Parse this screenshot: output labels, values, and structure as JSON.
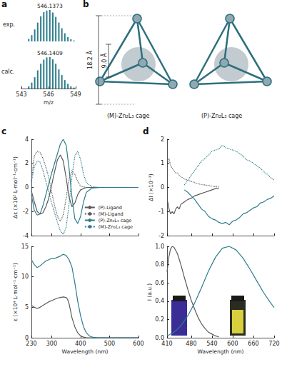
{
  "panel_labels": [
    "a",
    "b",
    "c",
    "d"
  ],
  "diagram": {
    "labels": [
      "(M)-Zn₂L₃ cage",
      "(P)-Zn₂L₃ cage"
    ],
    "dimensions": [
      "18.2 Å",
      "9.0 Å"
    ]
  },
  "chart_data": [
    {
      "type": "bar",
      "title": "exp.",
      "color": "#2e7d8c",
      "x": [
        543.81,
        544.14,
        544.47,
        544.8,
        545.14,
        545.47,
        545.8,
        546.14,
        546.47,
        546.8,
        547.14,
        547.47,
        547.8,
        548.14,
        548.47,
        548.81
      ],
      "values": [
        8,
        20,
        38,
        60,
        80,
        93,
        98,
        100,
        92,
        78,
        60,
        42,
        26,
        14,
        7,
        3
      ],
      "annotations": [
        {
          "x": 546.14,
          "text": "546.1373"
        }
      ],
      "xlim": [
        543,
        549
      ],
      "ylim": [
        0,
        100
      ],
      "tick_labels": false
    },
    {
      "type": "bar",
      "title": "calc.",
      "xlabel": "m/z",
      "color": "#2e7d8c",
      "x": [
        543.81,
        544.14,
        544.47,
        544.8,
        545.14,
        545.47,
        545.8,
        546.14,
        546.47,
        546.8,
        547.14,
        547.47,
        547.8,
        548.14,
        548.47,
        548.81
      ],
      "values": [
        7,
        19,
        36,
        58,
        79,
        92,
        99,
        100,
        93,
        79,
        61,
        43,
        27,
        15,
        7,
        3
      ],
      "annotations": [
        {
          "x": 546.14,
          "text": "546.1409"
        }
      ],
      "xlim": [
        543,
        549
      ],
      "xticks": [
        543,
        546,
        549
      ],
      "ylim": [
        0,
        100
      ],
      "tick_labels": "x"
    },
    {
      "type": "line",
      "ylabel": "Δε (×10² L·mol⁻¹·cm⁻¹)",
      "xlim": [
        230,
        600
      ],
      "xticks": [
        230,
        300,
        400,
        500,
        600
      ],
      "ylim": [
        -4,
        4
      ],
      "yticks": [
        -4,
        -2,
        0,
        2,
        4
      ],
      "tick_labels": "y",
      "grid": false,
      "legend": "lower right",
      "series": [
        {
          "name": "(P)-Ligand",
          "color": "#5a5a5a",
          "line_style": "solid",
          "x": [
            230,
            240,
            250,
            260,
            270,
            280,
            290,
            300,
            310,
            320,
            330,
            340,
            350,
            360,
            370,
            380,
            390,
            400,
            420,
            450,
            500,
            550,
            600
          ],
          "values": [
            -0.3,
            -1.2,
            -2.0,
            -2.2,
            -2.1,
            -1.6,
            -0.9,
            0.2,
            1.3,
            2.3,
            2.7,
            2.2,
            0.8,
            -0.8,
            -1.6,
            -1.3,
            -0.6,
            -0.2,
            0,
            0,
            0,
            0,
            0
          ]
        },
        {
          "name": "(M)-Ligand",
          "color": "#5a5a5a",
          "line_style": "dotted",
          "x": [
            230,
            240,
            250,
            260,
            270,
            280,
            290,
            300,
            310,
            320,
            330,
            340,
            350,
            360,
            370,
            380,
            390,
            400,
            420,
            450,
            500,
            550,
            600
          ],
          "values": [
            0.5,
            2.6,
            3.0,
            2.9,
            2.4,
            1.7,
            0.8,
            -0.4,
            -1.5,
            -2.4,
            -2.8,
            -2.3,
            -0.9,
            0.7,
            1.4,
            1.1,
            0.5,
            0.1,
            0,
            0,
            0,
            0,
            0
          ]
        },
        {
          "name": "(P)-Zn₂L₃ cage",
          "color": "#2e7d8c",
          "line_style": "solid",
          "x": [
            230,
            240,
            250,
            260,
            270,
            280,
            290,
            300,
            310,
            320,
            330,
            340,
            350,
            360,
            370,
            380,
            390,
            400,
            410,
            420,
            440,
            470,
            500,
            550,
            600
          ],
          "values": [
            -0.6,
            -1.9,
            -2.3,
            -2.2,
            -1.5,
            -0.6,
            0.3,
            1.2,
            2.0,
            2.8,
            3.6,
            4.0,
            3.5,
            1.6,
            -0.8,
            -2.6,
            -3.0,
            -2.4,
            -1.2,
            -0.4,
            -0.05,
            0,
            0,
            0,
            0
          ]
        },
        {
          "name": "(M)-Zn₂L₃ cage",
          "color": "#2e7d8c",
          "line_style": "dotted",
          "x": [
            230,
            240,
            250,
            260,
            270,
            280,
            290,
            300,
            310,
            320,
            330,
            340,
            350,
            360,
            370,
            380,
            390,
            400,
            410,
            420,
            440,
            470,
            500,
            550,
            600
          ],
          "values": [
            0.5,
            1.7,
            2.2,
            2.1,
            1.4,
            0.5,
            -0.4,
            -1.3,
            -2.1,
            -2.9,
            -3.6,
            -3.9,
            -3.3,
            -1.4,
            0.9,
            2.6,
            3.0,
            2.3,
            1.1,
            0.4,
            0.05,
            0,
            0,
            0,
            0
          ]
        }
      ]
    },
    {
      "type": "line",
      "xlabel": "Wavelength (nm)",
      "ylabel": "ε (×10⁴ L·mol⁻¹·cm⁻¹)",
      "xlim": [
        230,
        600
      ],
      "xticks": [
        230,
        300,
        400,
        500,
        600
      ],
      "ylim": [
        0,
        15
      ],
      "yticks": [
        0,
        5,
        10,
        15
      ],
      "grid": false,
      "series": [
        {
          "name": "(P)-Ligand",
          "color": "#5a5a5a",
          "line_style": "solid",
          "x": [
            230,
            240,
            250,
            260,
            270,
            280,
            290,
            300,
            310,
            320,
            330,
            340,
            350,
            355,
            360,
            365,
            370,
            380,
            390,
            400,
            410,
            420,
            450,
            500,
            600
          ],
          "values": [
            5.3,
            5.0,
            4.8,
            5.0,
            5.3,
            5.6,
            5.9,
            6.1,
            6.3,
            6.5,
            6.6,
            6.7,
            6.6,
            6.3,
            5.6,
            4.5,
            3.3,
            1.8,
            0.8,
            0.3,
            0.1,
            0,
            0,
            0,
            0
          ]
        },
        {
          "name": "(P)-Zn₂L₃ cage",
          "color": "#2e7d8c",
          "line_style": "solid",
          "x": [
            230,
            240,
            250,
            260,
            270,
            280,
            290,
            300,
            310,
            320,
            330,
            340,
            350,
            360,
            370,
            380,
            390,
            400,
            410,
            420,
            430,
            440,
            460,
            500,
            600
          ],
          "values": [
            12.8,
            12.0,
            11.5,
            11.8,
            12.2,
            12.6,
            12.8,
            13.0,
            13.0,
            13.2,
            13.4,
            13.7,
            13.5,
            12.8,
            11.6,
            9.0,
            6.0,
            3.6,
            1.8,
            0.8,
            0.3,
            0.1,
            0,
            0,
            0
          ]
        }
      ]
    },
    {
      "type": "line",
      "ylabel": "ΔI (×10⁻³)",
      "xlim": [
        410,
        720
      ],
      "xticks": [
        410,
        480,
        540,
        600,
        660,
        720
      ],
      "ylim": [
        -2,
        2
      ],
      "yticks": [
        -2,
        -1,
        0,
        1,
        2
      ],
      "tick_labels": "y",
      "grid": false,
      "series": [
        {
          "name": "(P)-Ligand",
          "color": "#5a5a5a",
          "line_style": "solid",
          "x": [
            412,
            416,
            420,
            425,
            430,
            435,
            440,
            445,
            450,
            460,
            470,
            480,
            490,
            500,
            510,
            520,
            530,
            540,
            550,
            560
          ],
          "values": [
            -0.6,
            -0.9,
            -1.1,
            -1.0,
            -1.1,
            -0.9,
            -0.8,
            -0.9,
            -0.7,
            -0.6,
            -0.5,
            -0.45,
            -0.35,
            -0.3,
            -0.25,
            -0.2,
            -0.15,
            -0.1,
            -0.05,
            -0.05
          ]
        },
        {
          "name": "(M)-Ligand",
          "color": "#5a5a5a",
          "line_style": "dotted",
          "x": [
            412,
            416,
            420,
            425,
            430,
            435,
            440,
            445,
            450,
            460,
            470,
            480,
            490,
            500,
            510,
            520,
            530,
            540,
            550,
            560
          ],
          "values": [
            1.0,
            1.2,
            0.9,
            0.8,
            0.7,
            0.6,
            0.6,
            0.5,
            0.45,
            0.35,
            0.3,
            0.25,
            0.2,
            0.15,
            0.12,
            0.1,
            0.08,
            0.05,
            0.03,
            0.02
          ]
        },
        {
          "name": "(P)-Zn₂L₃ cage",
          "color": "#2e7d8c",
          "line_style": "solid",
          "x": [
            460,
            470,
            480,
            490,
            500,
            510,
            520,
            530,
            540,
            550,
            560,
            570,
            580,
            590,
            600,
            610,
            620,
            630,
            640,
            650,
            660,
            670,
            680,
            690,
            700,
            710,
            720
          ],
          "values": [
            -0.1,
            -0.2,
            -0.35,
            -0.5,
            -0.7,
            -0.9,
            -1.0,
            -1.2,
            -1.3,
            -1.35,
            -1.45,
            -1.5,
            -1.45,
            -1.55,
            -1.4,
            -1.35,
            -1.25,
            -1.1,
            -1.05,
            -0.95,
            -0.85,
            -0.8,
            -0.65,
            -0.6,
            -0.5,
            -0.45,
            -0.35
          ]
        },
        {
          "name": "(M)-Zn₂L₃ cage",
          "color": "#2e7d8c",
          "line_style": "dotted",
          "x": [
            460,
            470,
            480,
            490,
            500,
            510,
            520,
            530,
            540,
            550,
            560,
            570,
            580,
            590,
            600,
            610,
            620,
            630,
            640,
            650,
            660,
            670,
            680,
            690,
            700,
            710,
            720
          ],
          "values": [
            0.1,
            0.3,
            0.5,
            0.7,
            0.9,
            1.1,
            1.2,
            1.35,
            1.5,
            1.55,
            1.6,
            1.75,
            1.65,
            1.6,
            1.55,
            1.5,
            1.4,
            1.3,
            1.15,
            1.1,
            1.0,
            0.9,
            0.8,
            0.65,
            0.55,
            0.4,
            0.3
          ]
        }
      ]
    },
    {
      "type": "line",
      "xlabel": "Wavelength (nm)",
      "ylabel": "I (a.u.)",
      "xlim": [
        410,
        720
      ],
      "xticks": [
        410,
        480,
        540,
        600,
        660,
        720
      ],
      "ylim": [
        0,
        1
      ],
      "yticks": [
        {
          "value": 0,
          "label": "0.0"
        },
        0.2,
        0.4,
        0.6,
        0.8,
        {
          "value": 1,
          "label": "1.0"
        }
      ],
      "grid": false,
      "series": [
        {
          "name": "(P)-Ligand",
          "color": "#5a5a5a",
          "line_style": "solid",
          "x": [
            410,
            415,
            420,
            425,
            430,
            440,
            450,
            460,
            470,
            480,
            490,
            500,
            510,
            520,
            530,
            540,
            550,
            560
          ],
          "values": [
            0.72,
            0.88,
            0.97,
            1.0,
            0.99,
            0.92,
            0.8,
            0.66,
            0.53,
            0.41,
            0.31,
            0.22,
            0.15,
            0.1,
            0.06,
            0.04,
            0.02,
            0.01
          ]
        },
        {
          "name": "(P)-Zn₂L₃ cage",
          "color": "#2e7d8c",
          "line_style": "solid",
          "x": [
            410,
            430,
            450,
            470,
            490,
            510,
            530,
            550,
            570,
            590,
            610,
            630,
            650,
            670,
            690,
            710,
            720
          ],
          "values": [
            0.02,
            0.06,
            0.13,
            0.24,
            0.38,
            0.55,
            0.73,
            0.88,
            0.98,
            1.0,
            0.96,
            0.87,
            0.75,
            0.62,
            0.49,
            0.38,
            0.33
          ]
        }
      ]
    }
  ]
}
